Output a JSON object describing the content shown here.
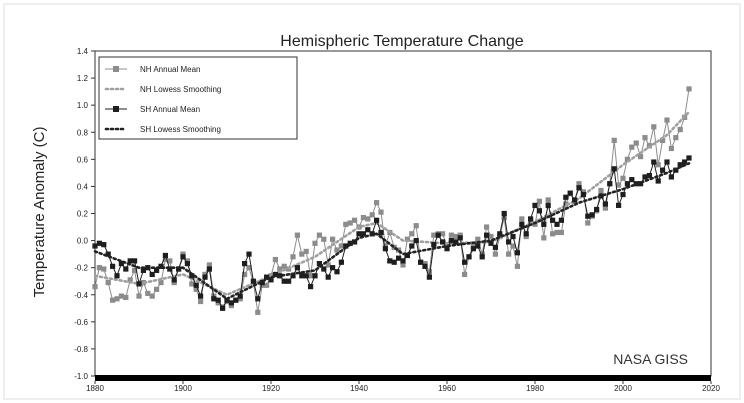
{
  "chart_data": {
    "type": "line",
    "title": "Hemispheric Temperature Change",
    "ylabel": "Temperature Anomaly (C)",
    "xlabel": "",
    "xlim": [
      1880,
      2020
    ],
    "ylim": [
      -1.0,
      1.4
    ],
    "x_ticks": [
      "1880",
      "1900",
      "1920",
      "1940",
      "1960",
      "1980",
      "2000",
      "2020"
    ],
    "y_ticks": [
      "1.4",
      "1.2",
      "1.0",
      "0.8",
      "0.6",
      "0.4",
      "0.2",
      "0.0",
      "-0.2",
      "-0.4",
      "-0.6",
      "-0.8",
      "-1.0"
    ],
    "grid": false,
    "legend_position": "top-left",
    "annotation": "NASA GISS",
    "series": [
      {
        "name": "NH Annual Mean",
        "style": "line-square-marker",
        "color": "#8c8c8c",
        "x": [
          1880,
          1881,
          1882,
          1883,
          1884,
          1885,
          1886,
          1887,
          1888,
          1889,
          1890,
          1891,
          1892,
          1893,
          1894,
          1895,
          1896,
          1897,
          1898,
          1899,
          1900,
          1901,
          1902,
          1903,
          1904,
          1905,
          1906,
          1907,
          1908,
          1909,
          1910,
          1911,
          1912,
          1913,
          1914,
          1915,
          1916,
          1917,
          1918,
          1919,
          1920,
          1921,
          1922,
          1923,
          1924,
          1925,
          1926,
          1927,
          1928,
          1929,
          1930,
          1931,
          1932,
          1933,
          1934,
          1935,
          1936,
          1937,
          1938,
          1939,
          1940,
          1941,
          1942,
          1943,
          1944,
          1945,
          1946,
          1947,
          1948,
          1949,
          1950,
          1951,
          1952,
          1953,
          1954,
          1955,
          1956,
          1957,
          1958,
          1959,
          1960,
          1961,
          1962,
          1963,
          1964,
          1965,
          1966,
          1967,
          1968,
          1969,
          1970,
          1971,
          1972,
          1973,
          1974,
          1975,
          1976,
          1977,
          1978,
          1979,
          1980,
          1981,
          1982,
          1983,
          1984,
          1985,
          1986,
          1987,
          1988,
          1989,
          1990,
          1991,
          1992,
          1993,
          1994,
          1995,
          1996,
          1997,
          1998,
          1999,
          2000,
          2001,
          2002,
          2003,
          2004,
          2005,
          2006,
          2007,
          2008,
          2009,
          2010,
          2011,
          2012,
          2013,
          2014,
          2015
        ],
        "values": [
          -0.34,
          -0.2,
          -0.21,
          -0.31,
          -0.44,
          -0.43,
          -0.41,
          -0.42,
          -0.29,
          -0.22,
          -0.41,
          -0.31,
          -0.39,
          -0.41,
          -0.36,
          -0.31,
          -0.14,
          -0.15,
          -0.31,
          -0.21,
          -0.1,
          -0.15,
          -0.32,
          -0.36,
          -0.45,
          -0.25,
          -0.18,
          -0.41,
          -0.46,
          -0.49,
          -0.45,
          -0.48,
          -0.44,
          -0.43,
          -0.25,
          -0.2,
          -0.31,
          -0.53,
          -0.33,
          -0.33,
          -0.26,
          -0.14,
          -0.21,
          -0.19,
          -0.21,
          -0.12,
          0.04,
          -0.1,
          -0.08,
          -0.26,
          -0.02,
          0.04,
          0.01,
          -0.18,
          0.01,
          -0.07,
          -0.04,
          0.12,
          0.13,
          0.15,
          0.1,
          0.17,
          0.16,
          0.19,
          0.28,
          0.21,
          -0.04,
          0.06,
          -0.05,
          -0.07,
          -0.18,
          0.01,
          0.05,
          0.11,
          -0.16,
          -0.17,
          -0.23,
          0.04,
          0.05,
          0.05,
          -0.04,
          0.04,
          0.03,
          0.04,
          -0.25,
          -0.12,
          -0.04,
          0.01,
          -0.1,
          0.1,
          0.03,
          -0.1,
          0.03,
          0.17,
          -0.1,
          -0.04,
          -0.19,
          0.16,
          0.03,
          0.14,
          0.12,
          0.29,
          0.02,
          0.3,
          0.05,
          0.06,
          0.06,
          0.27,
          0.35,
          0.29,
          0.42,
          0.36,
          0.13,
          0.18,
          0.22,
          0.37,
          0.24,
          0.42,
          0.74,
          0.41,
          0.46,
          0.6,
          0.69,
          0.72,
          0.62,
          0.76,
          0.7,
          0.84,
          0.56,
          0.74,
          0.89,
          0.68,
          0.76,
          0.82,
          0.91,
          1.12
        ]
      },
      {
        "name": "NH Lowess Smoothing",
        "style": "dotted",
        "color": "#a0a0a0",
        "x": [
          1880,
          1890,
          1900,
          1910,
          1920,
          1930,
          1940,
          1944,
          1950,
          1960,
          1970,
          1980,
          1990,
          2000,
          2010,
          2015
        ],
        "values": [
          -0.26,
          -0.32,
          -0.25,
          -0.4,
          -0.26,
          -0.12,
          0.1,
          0.13,
          0.0,
          -0.02,
          -0.01,
          0.14,
          0.31,
          0.56,
          0.78,
          0.95
        ]
      },
      {
        "name": "SH Annual Mean",
        "style": "line-square-marker",
        "color": "#1e1e1e",
        "x": [
          1880,
          1881,
          1882,
          1883,
          1884,
          1885,
          1886,
          1887,
          1888,
          1889,
          1890,
          1891,
          1892,
          1893,
          1894,
          1895,
          1896,
          1897,
          1898,
          1899,
          1900,
          1901,
          1902,
          1903,
          1904,
          1905,
          1906,
          1907,
          1908,
          1909,
          1910,
          1911,
          1912,
          1913,
          1914,
          1915,
          1916,
          1917,
          1918,
          1919,
          1920,
          1921,
          1922,
          1923,
          1924,
          1925,
          1926,
          1927,
          1928,
          1929,
          1930,
          1931,
          1932,
          1933,
          1934,
          1935,
          1936,
          1937,
          1938,
          1939,
          1940,
          1941,
          1942,
          1943,
          1944,
          1945,
          1946,
          1947,
          1948,
          1949,
          1950,
          1951,
          1952,
          1953,
          1954,
          1955,
          1956,
          1957,
          1958,
          1959,
          1960,
          1961,
          1962,
          1963,
          1964,
          1965,
          1966,
          1967,
          1968,
          1969,
          1970,
          1971,
          1972,
          1973,
          1974,
          1975,
          1976,
          1977,
          1978,
          1979,
          1980,
          1981,
          1982,
          1983,
          1984,
          1985,
          1986,
          1987,
          1988,
          1989,
          1990,
          1991,
          1992,
          1993,
          1994,
          1995,
          1996,
          1997,
          1998,
          1999,
          2000,
          2001,
          2002,
          2003,
          2004,
          2005,
          2006,
          2007,
          2008,
          2009,
          2010,
          2011,
          2012,
          2013,
          2014,
          2015
        ],
        "values": [
          -0.04,
          -0.02,
          -0.03,
          -0.1,
          -0.19,
          -0.26,
          -0.17,
          -0.21,
          -0.15,
          -0.15,
          -0.32,
          -0.22,
          -0.2,
          -0.25,
          -0.22,
          -0.19,
          -0.11,
          -0.21,
          -0.29,
          -0.21,
          -0.12,
          -0.17,
          -0.26,
          -0.33,
          -0.41,
          -0.27,
          -0.21,
          -0.43,
          -0.44,
          -0.5,
          -0.44,
          -0.46,
          -0.44,
          -0.41,
          -0.17,
          -0.1,
          -0.3,
          -0.43,
          -0.31,
          -0.27,
          -0.29,
          -0.25,
          -0.26,
          -0.3,
          -0.3,
          -0.26,
          -0.2,
          -0.26,
          -0.26,
          -0.34,
          -0.26,
          -0.17,
          -0.21,
          -0.27,
          -0.2,
          -0.23,
          -0.16,
          -0.04,
          -0.02,
          -0.01,
          0.05,
          0.05,
          0.08,
          0.05,
          0.15,
          0.06,
          -0.06,
          -0.15,
          -0.16,
          -0.13,
          -0.15,
          -0.11,
          -0.04,
          0.0,
          -0.16,
          -0.19,
          -0.27,
          -0.03,
          0.04,
          -0.01,
          -0.06,
          0.0,
          -0.01,
          0.02,
          -0.16,
          -0.12,
          -0.06,
          -0.04,
          -0.12,
          0.04,
          -0.02,
          -0.05,
          0.05,
          0.2,
          -0.01,
          0.03,
          -0.09,
          0.12,
          0.05,
          0.16,
          0.26,
          0.22,
          0.12,
          0.26,
          0.15,
          0.12,
          0.15,
          0.32,
          0.35,
          0.3,
          0.39,
          0.34,
          0.18,
          0.19,
          0.23,
          0.33,
          0.27,
          0.42,
          0.53,
          0.26,
          0.34,
          0.42,
          0.45,
          0.42,
          0.42,
          0.47,
          0.48,
          0.58,
          0.44,
          0.52,
          0.58,
          0.47,
          0.52,
          0.56,
          0.58,
          0.61
        ]
      },
      {
        "name": "SH Lowess Smoothing",
        "style": "dotted",
        "color": "#222222",
        "x": [
          1880,
          1890,
          1900,
          1910,
          1920,
          1930,
          1940,
          1944,
          1950,
          1960,
          1970,
          1980,
          1990,
          2000,
          2010,
          2015
        ],
        "values": [
          -0.08,
          -0.2,
          -0.2,
          -0.43,
          -0.27,
          -0.22,
          0.02,
          0.05,
          -0.1,
          -0.04,
          0.0,
          0.13,
          0.28,
          0.38,
          0.5,
          0.57
        ]
      }
    ]
  }
}
